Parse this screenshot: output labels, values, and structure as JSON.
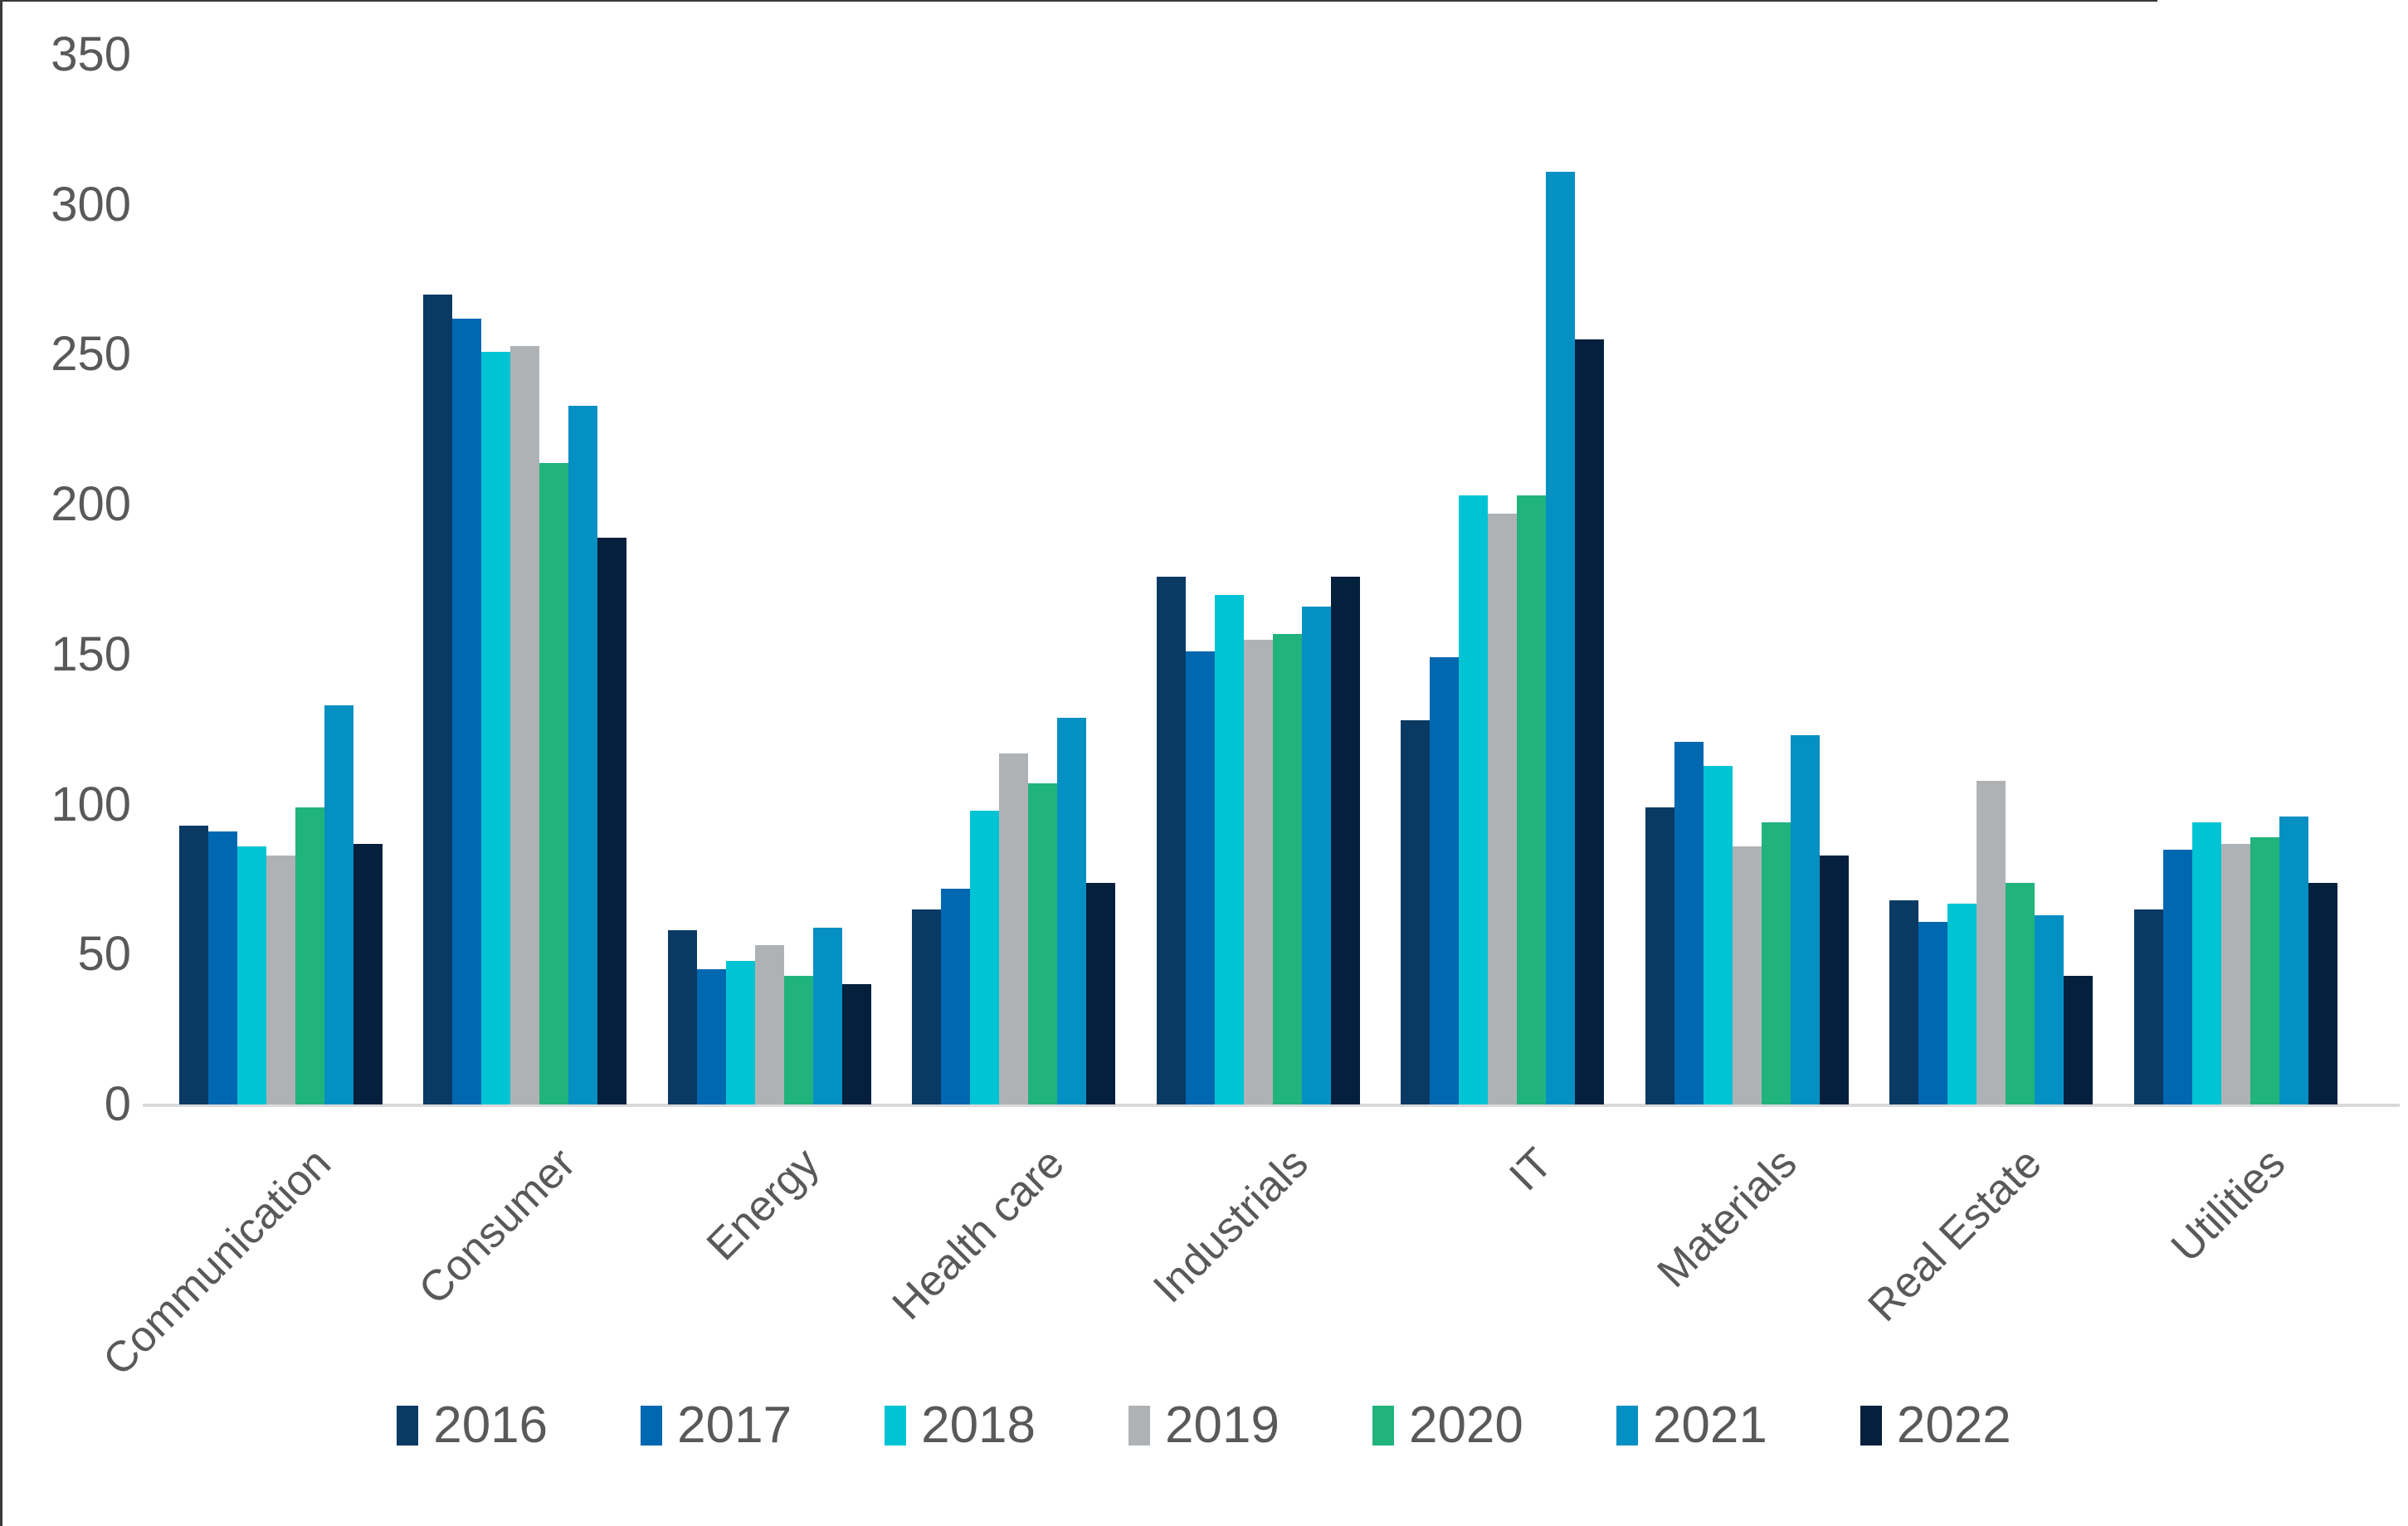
{
  "page": {
    "background": "#ffffff",
    "screenshot_border_color": "#3a3a3a"
  },
  "chart_data": {
    "type": "bar",
    "title": "",
    "xlabel": "",
    "ylabel": "",
    "categories": [
      "Communication",
      "Consumer",
      "Energy",
      "Health care",
      "Industrials",
      "IT",
      "Materials",
      "Real Estate",
      "Utilities"
    ],
    "series": [
      {
        "name": "2016",
        "color": "#0A3A64",
        "values": [
          93,
          270,
          58,
          65,
          176,
          128,
          99,
          68,
          65
        ]
      },
      {
        "name": "2017",
        "color": "#0067B1",
        "values": [
          91,
          262,
          45,
          72,
          151,
          149,
          121,
          61,
          85
        ]
      },
      {
        "name": "2018",
        "color": "#00C4D4",
        "values": [
          86,
          251,
          48,
          98,
          170,
          203,
          113,
          67,
          94
        ]
      },
      {
        "name": "2019",
        "color": "#AFB2B5",
        "values": [
          83,
          253,
          53,
          117,
          155,
          197,
          86,
          108,
          87
        ]
      },
      {
        "name": "2020",
        "color": "#21B37C",
        "values": [
          99,
          214,
          43,
          107,
          157,
          203,
          94,
          74,
          89
        ]
      },
      {
        "name": "2021",
        "color": "#0590C4",
        "values": [
          133,
          233,
          59,
          129,
          166,
          311,
          123,
          63,
          96
        ]
      },
      {
        "name": "2022",
        "color": "#05203C",
        "values": [
          87,
          189,
          40,
          74,
          176,
          255,
          83,
          43,
          74
        ]
      }
    ],
    "ylim": [
      0,
      350
    ],
    "y_ticks": [
      0,
      50,
      100,
      150,
      200,
      250,
      300,
      350
    ],
    "grid": "off",
    "legend_position": "bottom",
    "axis_line_color": "#d9d9d9",
    "text_color": "#595959"
  }
}
